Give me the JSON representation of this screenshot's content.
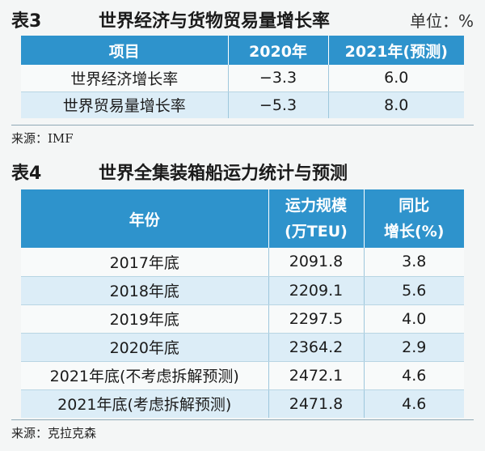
{
  "table3": {
    "number": "表3",
    "title": "世界经济与货物贸易量增长率",
    "unit": "单位：%",
    "headers": [
      "项目",
      "2020年",
      "2021年(预测)"
    ],
    "rows": [
      [
        "世界经济增长率",
        "−3.3",
        "6.0"
      ],
      [
        "世界贸易量增长率",
        "−5.3",
        "8.0"
      ]
    ],
    "source": "来源：IMF"
  },
  "table4": {
    "number": "表4",
    "title": "世界全集装箱船运力统计与预测",
    "headers": [
      "年份",
      "运力规模\n(万TEU)",
      "同比\n增长(%)"
    ],
    "rows": [
      [
        "2017年底",
        "2091.8",
        "3.8"
      ],
      [
        "2018年底",
        "2209.1",
        "5.6"
      ],
      [
        "2019年底",
        "2297.5",
        "4.0"
      ],
      [
        "2020年底",
        "2364.2",
        "2.9"
      ],
      [
        "2021年底(不考虑拆解预测)",
        "2472.1",
        "4.6"
      ],
      [
        "2021年底(考虑拆解预测)",
        "2471.8",
        "4.6"
      ]
    ],
    "source": "来源：克拉克森"
  }
}
